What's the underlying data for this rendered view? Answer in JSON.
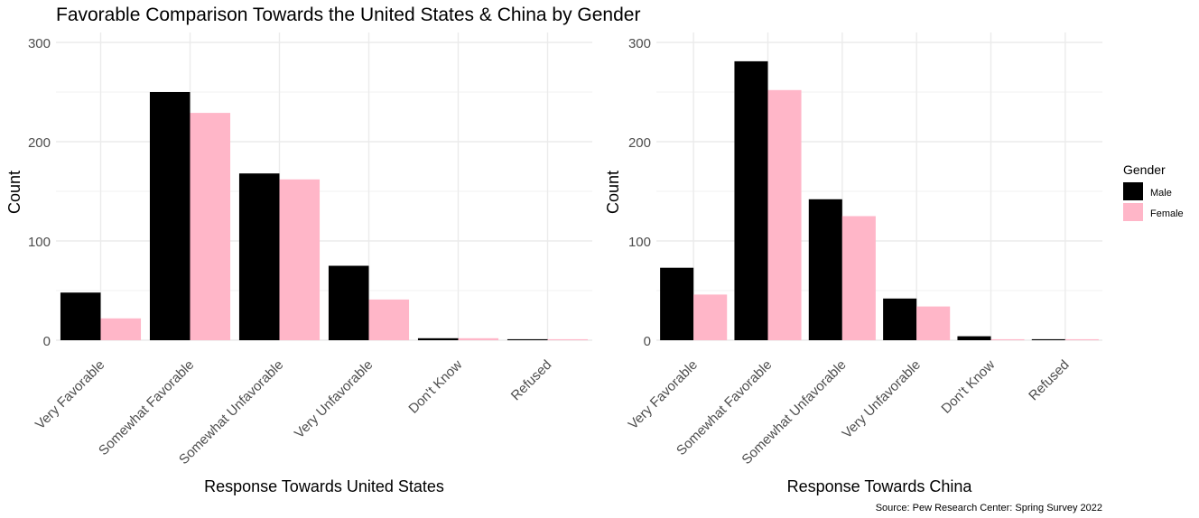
{
  "title": "Favorable Comparison Towards the United States & China by Gender",
  "caption": "Source: Pew Research Center: Spring Survey 2022",
  "legend": {
    "title": "Gender",
    "items": [
      {
        "label": "Male",
        "color": "#000000"
      },
      {
        "label": "Female",
        "color": "#ffb6c8"
      }
    ],
    "placement": "right"
  },
  "chart_data": [
    {
      "type": "bar",
      "categories": [
        "Very Favorable",
        "Somewhat Favorable",
        "Somewhat Unfavorable",
        "Very Unfavorable",
        "Don't Know",
        "Refused"
      ],
      "series": [
        {
          "name": "Male",
          "color": "#000000",
          "values": [
            48,
            250,
            168,
            75,
            2,
            1
          ]
        },
        {
          "name": "Female",
          "color": "#ffb6c8",
          "values": [
            22,
            229,
            162,
            41,
            2,
            1
          ]
        }
      ],
      "xlabel": "Response Towards United States",
      "ylabel": "Count",
      "ylim": [
        0,
        310
      ],
      "yticks": [
        0,
        100,
        200,
        300
      ],
      "grid": true
    },
    {
      "type": "bar",
      "categories": [
        "Very Favorable",
        "Somewhat Favorable",
        "Somewhat Unfavorable",
        "Very Unfavorable",
        "Don't Know",
        "Refused"
      ],
      "series": [
        {
          "name": "Male",
          "color": "#000000",
          "values": [
            73,
            281,
            142,
            42,
            4,
            1
          ]
        },
        {
          "name": "Female",
          "color": "#ffb6c8",
          "values": [
            46,
            252,
            125,
            34,
            1,
            1
          ]
        }
      ],
      "xlabel": "Response Towards China",
      "ylabel": "Count",
      "ylim": [
        0,
        310
      ],
      "yticks": [
        0,
        100,
        200,
        300
      ],
      "grid": true
    }
  ]
}
